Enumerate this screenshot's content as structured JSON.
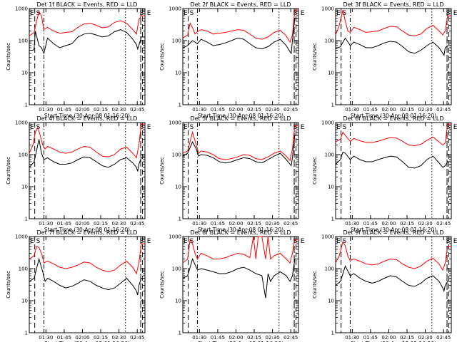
{
  "chart_data": {
    "type": "line",
    "figure": "Detector event / LLD count-rate lightcurves, 3x3 grid",
    "common": {
      "ylabel": "Counts/sec",
      "xlabel": "Start Time (30-Apr-08 01:16:20)",
      "yscale": "log",
      "ylim": [
        1,
        1000
      ],
      "ytick_labels": [
        "1",
        "10",
        "100",
        "1000"
      ],
      "xtick_labels": [
        "01:30",
        "01:45",
        "02:00",
        "02:15",
        "02:30",
        "02:45"
      ],
      "xtick_minutes": [
        13.67,
        28.67,
        43.67,
        58.67,
        73.67,
        88.67
      ],
      "xlim_minutes": [
        0,
        95
      ],
      "marker_labels": [
        "E",
        "S",
        "E",
        "S"
      ],
      "vlines_minutes": {
        "dash": [
          4.5,
          93
        ],
        "dashdot": [
          12
        ],
        "dot": [
          79
        ],
        "longdash": [
          91.5
        ]
      },
      "series_colors": {
        "events": "#000000",
        "lld": "#ff0000"
      }
    },
    "panels": [
      {
        "title": "Det 1f BLACK = Events, RED = LLD",
        "events": {
          "x": [
            0,
            3,
            4,
            5,
            8,
            10,
            12,
            15,
            20,
            25,
            30,
            35,
            40,
            45,
            50,
            55,
            60,
            65,
            70,
            75,
            80,
            85,
            88,
            89,
            91,
            92,
            95
          ],
          "y": [
            50,
            50,
            55,
            200,
            70,
            60,
            40,
            120,
            80,
            60,
            70,
            80,
            130,
            160,
            170,
            150,
            130,
            140,
            190,
            220,
            180,
            110,
            75,
            55,
            95,
            130,
            130
          ]
        },
        "lld": {
          "x": [
            0,
            4,
            6,
            8,
            9,
            10,
            12,
            15,
            20,
            25,
            30,
            35,
            40,
            45,
            50,
            55,
            60,
            65,
            70,
            75,
            80,
            85,
            88,
            90,
            92,
            95
          ],
          "y": [
            140,
            180,
            400,
            800,
            700,
            600,
            220,
            260,
            200,
            170,
            180,
            190,
            260,
            330,
            350,
            300,
            250,
            270,
            370,
            420,
            350,
            220,
            160,
            450,
            600,
            600
          ]
        }
      },
      {
        "title": "Det 2f BLACK = Events, RED = LLD",
        "events": {
          "x": [
            0,
            4,
            8,
            12,
            15,
            20,
            25,
            30,
            35,
            40,
            45,
            50,
            55,
            60,
            65,
            70,
            75,
            80,
            85,
            88,
            89,
            90,
            92,
            95
          ],
          "y": [
            60,
            70,
            100,
            80,
            110,
            90,
            70,
            75,
            85,
            100,
            120,
            110,
            80,
            60,
            55,
            65,
            90,
            110,
            70,
            45,
            40,
            100,
            500,
            500
          ]
        },
        "lld": {
          "x": [
            0,
            4,
            6,
            8,
            10,
            12,
            15,
            20,
            25,
            30,
            35,
            40,
            45,
            50,
            55,
            60,
            65,
            70,
            75,
            80,
            85,
            88,
            90,
            92,
            95
          ],
          "y": [
            120,
            150,
            350,
            250,
            160,
            190,
            220,
            200,
            160,
            170,
            180,
            200,
            220,
            210,
            160,
            120,
            110,
            130,
            180,
            210,
            140,
            90,
            150,
            900,
            900
          ]
        }
      },
      {
        "title": "Det 3f BLACK = Events, RED = LLD",
        "events": {
          "x": [
            0,
            4,
            8,
            12,
            15,
            20,
            25,
            30,
            35,
            40,
            45,
            50,
            55,
            60,
            65,
            70,
            75,
            80,
            85,
            88,
            89,
            90,
            92,
            95
          ],
          "y": [
            55,
            65,
            120,
            70,
            90,
            75,
            60,
            60,
            70,
            85,
            95,
            90,
            65,
            45,
            40,
            50,
            70,
            90,
            60,
            40,
            35,
            60,
            70,
            70
          ]
        },
        "lld": {
          "x": [
            0,
            3,
            6,
            8,
            10,
            12,
            15,
            20,
            25,
            30,
            35,
            40,
            45,
            50,
            55,
            60,
            65,
            70,
            75,
            80,
            85,
            88,
            90,
            92,
            95
          ],
          "y": [
            150,
            300,
            900,
            400,
            200,
            180,
            260,
            220,
            180,
            190,
            200,
            240,
            280,
            270,
            200,
            150,
            140,
            160,
            240,
            300,
            200,
            150,
            200,
            600,
            600
          ]
        }
      },
      {
        "title": "Det 4f BLACK = Events, RED = LLD",
        "events": {
          "x": [
            0,
            4,
            8,
            10,
            12,
            15,
            20,
            25,
            30,
            35,
            40,
            45,
            50,
            55,
            60,
            65,
            70,
            75,
            80,
            85,
            88,
            89,
            90,
            92,
            95
          ],
          "y": [
            40,
            60,
            300,
            110,
            70,
            80,
            60,
            50,
            50,
            55,
            70,
            85,
            80,
            60,
            45,
            40,
            50,
            70,
            80,
            55,
            40,
            30,
            50,
            80,
            80
          ]
        },
        "lld": {
          "x": [
            0,
            3,
            5,
            7,
            9,
            11,
            13,
            15,
            20,
            25,
            30,
            35,
            40,
            45,
            50,
            55,
            60,
            65,
            70,
            75,
            80,
            85,
            88,
            90,
            92,
            95
          ],
          "y": [
            110,
            200,
            500,
            700,
            400,
            200,
            150,
            180,
            150,
            120,
            110,
            120,
            150,
            180,
            170,
            120,
            90,
            85,
            100,
            150,
            170,
            110,
            80,
            200,
            900,
            900
          ]
        }
      },
      {
        "title": "Det 5f BLACK = Events, RED = LLD",
        "events": {
          "x": [
            0,
            4,
            8,
            11,
            13,
            15,
            20,
            25,
            30,
            35,
            40,
            45,
            50,
            55,
            60,
            65,
            70,
            75,
            80,
            85,
            88,
            89,
            90,
            92,
            95
          ],
          "y": [
            90,
            110,
            250,
            150,
            90,
            100,
            95,
            80,
            60,
            55,
            60,
            70,
            80,
            75,
            60,
            55,
            70,
            90,
            110,
            70,
            50,
            45,
            80,
            400,
            400
          ]
        },
        "lld": {
          "x": [
            0,
            4,
            8,
            11,
            13,
            15,
            20,
            25,
            30,
            35,
            40,
            45,
            50,
            55,
            60,
            65,
            70,
            75,
            80,
            85,
            88,
            90,
            92,
            95
          ],
          "y": [
            110,
            130,
            500,
            200,
            110,
            130,
            120,
            100,
            75,
            70,
            75,
            85,
            100,
            95,
            75,
            70,
            85,
            110,
            130,
            90,
            65,
            150,
            800,
            800
          ]
        }
      },
      {
        "title": "Det 6f BLACK = Events, RED = LLD",
        "events": {
          "x": [
            0,
            4,
            6,
            8,
            12,
            15,
            20,
            25,
            30,
            35,
            40,
            45,
            50,
            55,
            60,
            65,
            70,
            75,
            80,
            85,
            88,
            90,
            92,
            95
          ],
          "y": [
            50,
            70,
            120,
            110,
            70,
            90,
            70,
            60,
            60,
            70,
            80,
            90,
            85,
            60,
            40,
            38,
            45,
            70,
            90,
            55,
            40,
            45,
            60,
            60
          ]
        },
        "lld": {
          "x": [
            0,
            4,
            6,
            8,
            12,
            15,
            20,
            25,
            30,
            35,
            40,
            45,
            50,
            55,
            60,
            65,
            70,
            75,
            80,
            85,
            88,
            90,
            92,
            95
          ],
          "y": [
            250,
            300,
            500,
            400,
            260,
            320,
            270,
            240,
            240,
            260,
            300,
            340,
            330,
            260,
            200,
            190,
            210,
            280,
            350,
            250,
            200,
            230,
            900,
            900
          ]
        }
      },
      {
        "title": "Det 7f BLACK = Events, RED = LLD",
        "events": {
          "x": [
            0,
            4,
            8,
            11,
            13,
            15,
            20,
            25,
            30,
            35,
            40,
            45,
            50,
            55,
            60,
            65,
            70,
            75,
            80,
            85,
            88,
            89,
            90,
            92,
            95
          ],
          "y": [
            40,
            50,
            200,
            80,
            40,
            50,
            40,
            30,
            25,
            28,
            35,
            45,
            40,
            30,
            25,
            22,
            25,
            35,
            50,
            30,
            20,
            15,
            30,
            50,
            50
          ]
        },
        "lld": {
          "x": [
            0,
            4,
            6,
            8,
            10,
            12,
            15,
            20,
            25,
            30,
            35,
            40,
            45,
            50,
            55,
            60,
            65,
            70,
            75,
            80,
            85,
            88,
            90,
            92,
            95
          ],
          "y": [
            200,
            250,
            500,
            450,
            300,
            150,
            170,
            140,
            110,
            100,
            110,
            130,
            160,
            150,
            110,
            90,
            80,
            90,
            130,
            170,
            110,
            70,
            150,
            600,
            600
          ]
        }
      },
      {
        "title": "Det 8f BLACK = Events, RED = LLD",
        "events": {
          "x": [
            0,
            4,
            8,
            12,
            15,
            20,
            25,
            30,
            35,
            40,
            45,
            50,
            55,
            60,
            65,
            68,
            70,
            72,
            75,
            80,
            85,
            88,
            90,
            92,
            95
          ],
          "y": [
            50,
            60,
            200,
            90,
            100,
            90,
            80,
            70,
            70,
            80,
            100,
            110,
            90,
            70,
            60,
            12,
            70,
            40,
            60,
            80,
            60,
            40,
            60,
            200,
            200
          ]
        },
        "lld": {
          "x": [
            0,
            4,
            6,
            8,
            10,
            12,
            15,
            20,
            25,
            30,
            35,
            40,
            45,
            50,
            55,
            58,
            60,
            62,
            65,
            68,
            70,
            72,
            75,
            80,
            85,
            88,
            90,
            92,
            95
          ],
          "y": [
            150,
            200,
            800,
            600,
            300,
            200,
            300,
            250,
            200,
            200,
            220,
            260,
            300,
            280,
            220,
            1000,
            200,
            1000,
            1000,
            200,
            1000,
            200,
            250,
            300,
            200,
            150,
            300,
            800,
            800
          ]
        }
      },
      {
        "title": "Det 9f BLACK = Events, RED = LLD",
        "events": {
          "x": [
            0,
            4,
            8,
            12,
            15,
            20,
            25,
            30,
            35,
            40,
            45,
            50,
            55,
            60,
            65,
            70,
            75,
            80,
            85,
            88,
            89,
            90,
            92,
            95
          ],
          "y": [
            30,
            40,
            120,
            60,
            70,
            50,
            40,
            35,
            40,
            50,
            60,
            55,
            40,
            30,
            28,
            35,
            50,
            60,
            40,
            25,
            20,
            30,
            40,
            40
          ]
        },
        "lld": {
          "x": [
            0,
            3,
            6,
            8,
            10,
            12,
            15,
            20,
            25,
            30,
            35,
            40,
            45,
            50,
            55,
            60,
            65,
            70,
            75,
            80,
            85,
            88,
            90,
            92,
            95
          ],
          "y": [
            150,
            250,
            700,
            500,
            250,
            180,
            200,
            170,
            140,
            130,
            140,
            170,
            200,
            190,
            140,
            110,
            100,
            120,
            170,
            210,
            140,
            90,
            150,
            500,
            500
          ]
        }
      }
    ]
  }
}
